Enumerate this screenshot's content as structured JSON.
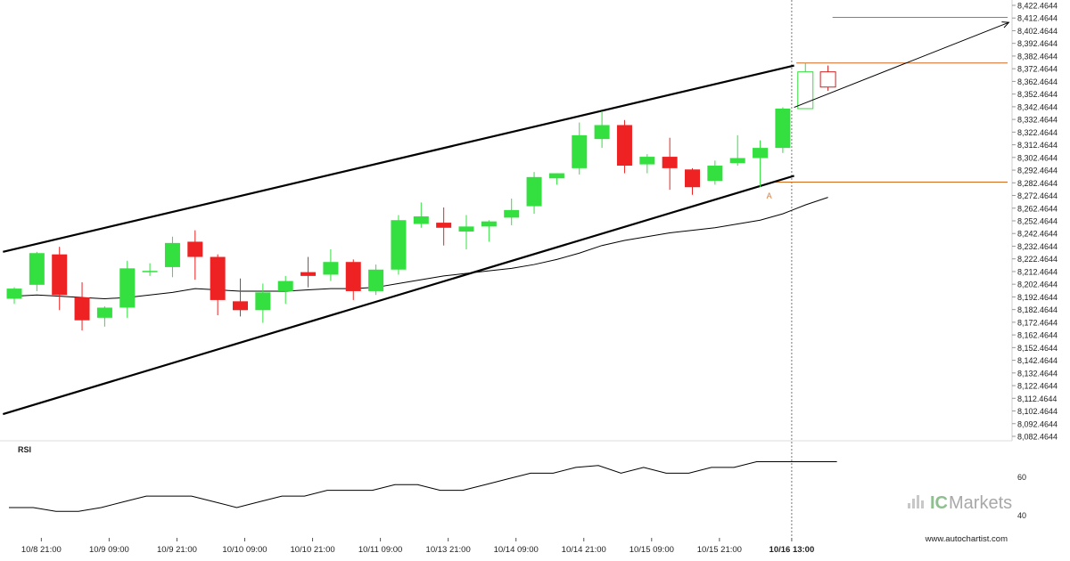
{
  "chart_data": {
    "type": "candlestick",
    "yaxis_ticks": [
      "8,422.4644",
      "8,412.4644",
      "8,402.4644",
      "8,392.4644",
      "8,382.4644",
      "8,372.4644",
      "8,362.4644",
      "8,352.4644",
      "8,342.4644",
      "8,332.4644",
      "8,322.4644",
      "8,312.4644",
      "8,302.4644",
      "8,292.4644",
      "8,282.4644",
      "8,272.4644",
      "8,262.4644",
      "8,252.4644",
      "8,242.4644",
      "8,232.4644",
      "8,222.4644",
      "8,212.4644",
      "8,202.4644",
      "8,192.4644",
      "8,182.4644",
      "8,172.4644",
      "8,162.4644",
      "8,152.4644",
      "8,142.4644",
      "8,132.4644",
      "8,122.4644",
      "8,112.4644",
      "8,102.4644",
      "8,092.4644",
      "8,082.4644"
    ],
    "ylim": [
      8082.4644,
      8422.4644
    ],
    "x_labels": [
      {
        "label": "10/8 21:00",
        "index": 1
      },
      {
        "label": "10/9 09:00",
        "index": 4
      },
      {
        "label": "10/9 21:00",
        "index": 7
      },
      {
        "label": "10/10 09:00",
        "index": 10
      },
      {
        "label": "10/10 21:00",
        "index": 13
      },
      {
        "label": "10/11 09:00",
        "index": 16
      },
      {
        "label": "10/13 21:00",
        "index": 19
      },
      {
        "label": "10/14 09:00",
        "index": 22
      },
      {
        "label": "10/14 21:00",
        "index": 25
      },
      {
        "label": "10/15 09:00",
        "index": 28
      },
      {
        "label": "10/15 21:00",
        "index": 31
      },
      {
        "label": "10/16 13:00",
        "index": 34
      }
    ],
    "candles": [
      {
        "o": 8191,
        "h": 8200,
        "l": 8187,
        "c": 8199
      },
      {
        "o": 8202,
        "h": 8228,
        "l": 8197,
        "c": 8227
      },
      {
        "o": 8226,
        "h": 8232,
        "l": 8182,
        "c": 8194
      },
      {
        "o": 8192,
        "h": 8204,
        "l": 8166,
        "c": 8174
      },
      {
        "o": 8176,
        "h": 8185,
        "l": 8169,
        "c": 8184
      },
      {
        "o": 8184,
        "h": 8221,
        "l": 8176,
        "c": 8215
      },
      {
        "o": 8213,
        "h": 8219,
        "l": 8209,
        "c": 8213
      },
      {
        "o": 8216,
        "h": 8240,
        "l": 8208,
        "c": 8235
      },
      {
        "o": 8236,
        "h": 8245,
        "l": 8206,
        "c": 8224
      },
      {
        "o": 8224,
        "h": 8226,
        "l": 8178,
        "c": 8190
      },
      {
        "o": 8189,
        "h": 8207,
        "l": 8177,
        "c": 8182
      },
      {
        "o": 8182,
        "h": 8203,
        "l": 8172,
        "c": 8196
      },
      {
        "o": 8197,
        "h": 8209,
        "l": 8187,
        "c": 8205
      },
      {
        "o": 8212,
        "h": 8224,
        "l": 8200,
        "c": 8209
      },
      {
        "o": 8210,
        "h": 8230,
        "l": 8205,
        "c": 8220
      },
      {
        "o": 8220,
        "h": 8222,
        "l": 8190,
        "c": 8197
      },
      {
        "o": 8197,
        "h": 8218,
        "l": 8194,
        "c": 8214
      },
      {
        "o": 8214,
        "h": 8257,
        "l": 8210,
        "c": 8253
      },
      {
        "o": 8250,
        "h": 8267,
        "l": 8247,
        "c": 8256
      },
      {
        "o": 8251,
        "h": 8263,
        "l": 8233,
        "c": 8247
      },
      {
        "o": 8244,
        "h": 8257,
        "l": 8230,
        "c": 8248
      },
      {
        "o": 8248,
        "h": 8253,
        "l": 8236,
        "c": 8252
      },
      {
        "o": 8255,
        "h": 8270,
        "l": 8249,
        "c": 8261
      },
      {
        "o": 8264,
        "h": 8291,
        "l": 8258,
        "c": 8287
      },
      {
        "o": 8286,
        "h": 8290,
        "l": 8281,
        "c": 8290
      },
      {
        "o": 8294,
        "h": 8330,
        "l": 8289,
        "c": 8320
      },
      {
        "o": 8317,
        "h": 8339,
        "l": 8310,
        "c": 8328
      },
      {
        "o": 8328,
        "h": 8332,
        "l": 8290,
        "c": 8296
      },
      {
        "o": 8297,
        "h": 8305,
        "l": 8290,
        "c": 8303
      },
      {
        "o": 8303,
        "h": 8318,
        "l": 8277,
        "c": 8294
      },
      {
        "o": 8293,
        "h": 8294,
        "l": 8273,
        "c": 8279
      },
      {
        "o": 8284,
        "h": 8300,
        "l": 8281,
        "c": 8296
      },
      {
        "o": 8298,
        "h": 8320,
        "l": 8296,
        "c": 8302
      },
      {
        "o": 8302,
        "h": 8316,
        "l": 8279,
        "c": 8310
      },
      {
        "o": 8310,
        "h": 8342,
        "l": 8306,
        "c": 8341
      },
      {
        "o": 8341,
        "h": 8377,
        "l": 8341,
        "c": 8370
      },
      {
        "o": 8370,
        "h": 8375,
        "l": 8355,
        "c": 8358
      }
    ],
    "moving_average": [
      8193,
      8194,
      8193,
      8192,
      8191,
      8192,
      8194,
      8196,
      8199,
      8198,
      8197,
      8197,
      8197,
      8198,
      8199,
      8199,
      8200,
      8203,
      8206,
      8209,
      8211,
      8213,
      8215,
      8218,
      8222,
      8227,
      8233,
      8237,
      8240,
      8243,
      8245,
      8247,
      8250,
      8253,
      8258,
      8265,
      8271
    ],
    "channel": {
      "upper": [
        {
          "index": -0.5,
          "value": 8228
        },
        {
          "index": 34.5,
          "value": 8375
        }
      ],
      "lower": [
        {
          "index": -0.5,
          "value": 8100
        },
        {
          "index": 34.5,
          "value": 8288
        }
      ]
    },
    "levels": [
      {
        "value": 8413,
        "from_index": 36.2
      },
      {
        "value": 8377,
        "from_index": 34.6
      },
      {
        "value": 8283,
        "from_index": 33.6
      }
    ],
    "forecast_arrow": [
      {
        "index": 34.5,
        "value": 8342
      },
      {
        "index": 44,
        "value": 8409
      }
    ],
    "marker": {
      "label": "A",
      "index": 33.4,
      "value": 8272
    },
    "current_index": 34,
    "rsi": {
      "label": "RSI",
      "ticks": [
        "60",
        "40"
      ],
      "ylim": [
        30,
        78
      ],
      "values": [
        44,
        44,
        42,
        42,
        44,
        47,
        50,
        50,
        50,
        47,
        44,
        47,
        50,
        50,
        53,
        53,
        53,
        56,
        56,
        53,
        53,
        56,
        59,
        62,
        62,
        65,
        66,
        62,
        65,
        62,
        62,
        65,
        65,
        68,
        68,
        68,
        68
      ]
    },
    "colors": {
      "up": "#33e03f",
      "down": "#ee2222",
      "pending": "#cc2222",
      "level": "#d2691e",
      "marker": "#e07b39"
    }
  },
  "watermark": {
    "brand_ic": "IC",
    "brand_rest": "Markets"
  },
  "footer": {
    "url": "www.autochartist.com"
  }
}
